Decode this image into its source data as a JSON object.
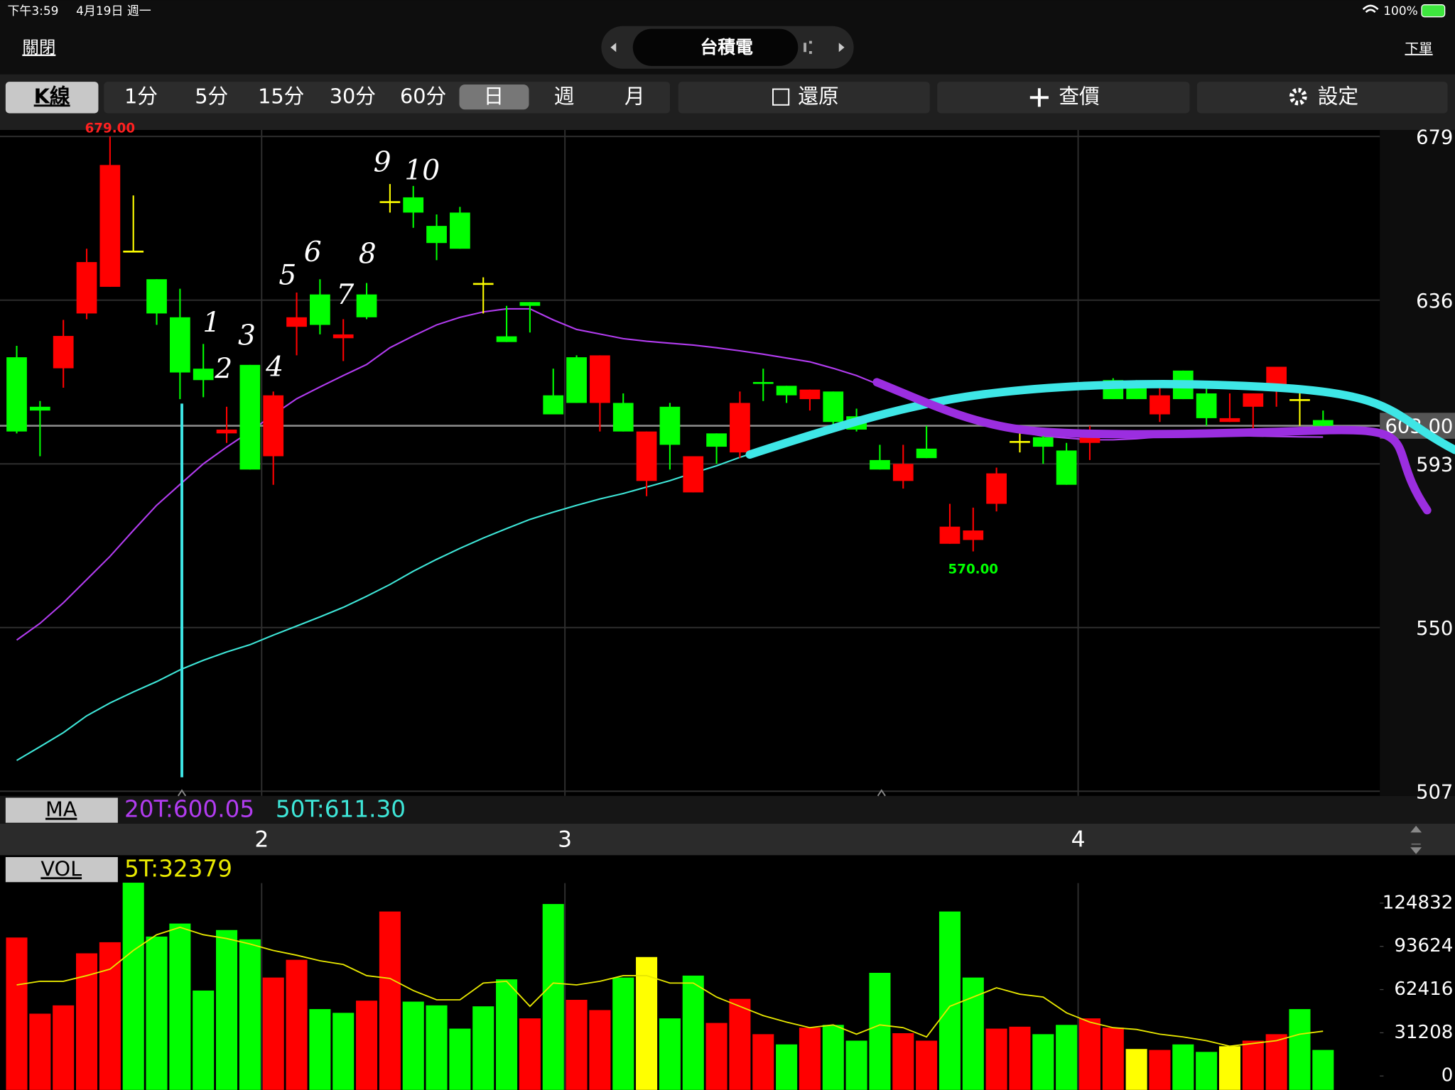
{
  "status_bar": {
    "time": "下午3:59",
    "date": "4月19日 週一",
    "battery": "100%"
  },
  "nav": {
    "close": "關閉",
    "title": "台積電",
    "order": "下單"
  },
  "toolbar": {
    "kline": "K線",
    "periods": [
      "1分",
      "5分",
      "15分",
      "30分",
      "60分",
      "日",
      "週",
      "月"
    ],
    "restore": "還原",
    "quote": "查價",
    "settings": "設定"
  },
  "panels": {
    "ma": "MA",
    "vol": "VOL"
  },
  "chart_data": [
    {
      "type": "candlestick",
      "categories": [
        null,
        null,
        null,
        null,
        null,
        null,
        null,
        null,
        null,
        null,
        null,
        "2",
        null,
        null,
        null,
        null,
        null,
        null,
        null,
        null,
        null,
        null,
        null,
        null,
        "3",
        null,
        null,
        null,
        null,
        null,
        null,
        null,
        null,
        null,
        null,
        null,
        null,
        null,
        null,
        null,
        null,
        null,
        null,
        null,
        null,
        null,
        "4",
        null,
        null,
        null,
        null,
        null,
        null,
        null,
        null,
        null,
        null
      ],
      "open": [
        621,
        608,
        618.1,
        632.5,
        639.5,
        649,
        641.5,
        631.5,
        618,
        601,
        619,
        595,
        629,
        637.5,
        626,
        637.5,
        662,
        663,
        655.5,
        659,
        640.5,
        626.5,
        635.5,
        611,
        621,
        609,
        609,
        588.5,
        608,
        585.5,
        601,
        596,
        614.5,
        613.5,
        610,
        612,
        605.5,
        594,
        588.5,
        597,
        572,
        573,
        582.5,
        599,
        600,
        596.5,
        598.5,
        615,
        614.5,
        606,
        617.5,
        611.5,
        604,
        608,
        613.5,
        610,
        604.5
      ],
      "high": [
        624,
        609.5,
        630.8,
        649.5,
        679,
        663.5,
        641.5,
        639,
        624.5,
        608,
        619,
        612,
        638,
        641.5,
        631,
        640.5,
        666.5,
        666,
        658.5,
        660.5,
        642,
        634.5,
        635.5,
        618,
        621.5,
        621.5,
        611.5,
        601.5,
        609,
        595,
        601,
        612,
        618,
        613.5,
        612.5,
        612,
        607.5,
        598,
        598,
        603,
        582.5,
        581.5,
        592,
        602.5,
        602.5,
        598.5,
        603,
        615.5,
        615,
        613,
        617.5,
        614.5,
        611.5,
        611.5,
        618.5,
        611.5,
        607
      ],
      "low": [
        601,
        595,
        613,
        631,
        639.5,
        649,
        629.5,
        610,
        610.5,
        598.5,
        591.5,
        587.5,
        621.5,
        627,
        620,
        631,
        659,
        655,
        646.5,
        649.5,
        632.5,
        625,
        627.5,
        606,
        609,
        601.5,
        601.5,
        584.5,
        591.5,
        585.5,
        593,
        594.5,
        609.5,
        609,
        607,
        603,
        601.5,
        591.5,
        586.5,
        594.5,
        572,
        570,
        580.5,
        596,
        593,
        587.5,
        594,
        610,
        610,
        604,
        610,
        603,
        604,
        602,
        608,
        603,
        602.5
      ],
      "close": [
        601.5,
        607,
        626.6,
        646,
        671.5,
        649,
        632.5,
        617,
        615,
        602,
        591.5,
        611,
        631.5,
        629.5,
        627,
        631.5,
        662,
        659,
        651,
        649.5,
        640.5,
        625,
        634.5,
        606,
        609,
        621.5,
        601.5,
        601.5,
        598,
        595,
        597.5,
        609,
        614,
        611,
        612.5,
        604,
        602,
        591.5,
        593,
        594.5,
        576.5,
        575.5,
        590.5,
        599,
        597.5,
        587.5,
        601.5,
        610,
        610,
        611,
        610,
        605,
        605,
        611.5,
        618.5,
        610,
        603
      ],
      "colors": {
        "up": "#ff0000",
        "down": "#00ff00",
        "flat": "#ffff00"
      },
      "ylim": [
        507,
        679
      ],
      "yticks": [
        679,
        636,
        593,
        550,
        507
      ],
      "grid": true,
      "high_label": "679.00",
      "low_label": "570.00",
      "last_price": 603,
      "last_price_label": "603.00",
      "annotations": [
        "1",
        "2",
        "3",
        "4",
        "5",
        "6",
        "7",
        "8",
        "9",
        "10"
      ],
      "series": [
        {
          "name": "20T:600.05",
          "color": "#b23cf0",
          "values": [
            546.7,
            551.1,
            556.5,
            562.6,
            568.7,
            575.5,
            582.1,
            587.6,
            593,
            597.4,
            601.5,
            605.9,
            610.1,
            613.2,
            616.2,
            619.1,
            623.5,
            626.6,
            629.5,
            631.5,
            632.9,
            633.7,
            633.7,
            630.8,
            628.3,
            627.1,
            625.9,
            625.2,
            624.7,
            624.2,
            623.5,
            622.7,
            621.8,
            620.8,
            619.8,
            618.1,
            616.2,
            613.7,
            611.3,
            608.8,
            606.9,
            604.7,
            602.8,
            601.3,
            600.3,
            599.8,
            599.3,
            599.3,
            599.6,
            600.1,
            600.3,
            600.6,
            600.5,
            600.3,
            600.2,
            600.1,
            600.05
          ]
        },
        {
          "name": "50T:611.30",
          "color": "#3ee6d8",
          "values": [
            515.1,
            518.7,
            522.4,
            526.8,
            530.2,
            533.1,
            535.8,
            538.9,
            541.4,
            543.6,
            545.5,
            548,
            550.4,
            552.8,
            555.3,
            558.2,
            561.3,
            564.8,
            567.9,
            570.8,
            573.5,
            576,
            578.4,
            580.3,
            582.1,
            583.8,
            585.2,
            586.9,
            588.6,
            590.6,
            592.5,
            594.7,
            596.7,
            598.6,
            600.3,
            602.3,
            604,
            605.9,
            607.6,
            609.1,
            610.5,
            611.3,
            612,
            612.3,
            612.5,
            612.7,
            613,
            613,
            613,
            613.2,
            613.5,
            613.7,
            613.7,
            613.5,
            613,
            612.5,
            611.3
          ]
        }
      ]
    },
    {
      "type": "bar",
      "values": [
        100000,
        45000,
        51000,
        88600,
        96600,
        139600,
        100700,
        110100,
        61700,
        105400,
        98700,
        71100,
        83900,
        48300,
        45600,
        54400,
        118800,
        53700,
        51000,
        34200,
        50300,
        69800,
        41600,
        124200,
        55000,
        47600,
        71100,
        85900,
        41600,
        72500,
        38300,
        55700,
        30200,
        22800,
        34900,
        36900,
        25500,
        74500,
        30900,
        25500,
        118800,
        71100,
        34200,
        35600,
        30200,
        36900,
        41600,
        34900,
        19500,
        18800,
        22800,
        17400,
        21500,
        25500,
        30200,
        48300,
        18800
      ],
      "colors": [
        "#ff0000",
        "#ff0000",
        "#ff0000",
        "#ff0000",
        "#ff0000",
        "#00ff00",
        "#00ff00",
        "#00ff00",
        "#00ff00",
        "#00ff00",
        "#00ff00",
        "#ff0000",
        "#ff0000",
        "#00ff00",
        "#00ff00",
        "#ff0000",
        "#ff0000",
        "#00ff00",
        "#00ff00",
        "#00ff00",
        "#00ff00",
        "#00ff00",
        "#ff0000",
        "#00ff00",
        "#ff0000",
        "#ff0000",
        "#00ff00",
        "#ffff00",
        "#00ff00",
        "#00ff00",
        "#ff0000",
        "#ff0000",
        "#ff0000",
        "#00ff00",
        "#ff0000",
        "#00ff00",
        "#00ff00",
        "#00ff00",
        "#ff0000",
        "#ff0000",
        "#00ff00",
        "#00ff00",
        "#ff0000",
        "#ff0000",
        "#00ff00",
        "#00ff00",
        "#ff0000",
        "#ff0000",
        "#ffff00",
        "#ff0000",
        "#00ff00",
        "#00ff00",
        "#ffff00",
        "#ff0000",
        "#ff0000",
        "#00ff00",
        "#00ff00"
      ],
      "ylim": [
        0,
        140000
      ],
      "yticks": [
        124832,
        93624,
        62416,
        31208,
        0
      ],
      "series": [
        {
          "name": "5T:32379",
          "color": "#e8e800",
          "values": [
            65800,
            68400,
            68400,
            72500,
            77200,
            90600,
            102000,
            107400,
            102000,
            99300,
            95300,
            90600,
            87200,
            83200,
            80500,
            72500,
            70500,
            61700,
            55000,
            55000,
            67100,
            68400,
            50300,
            67100,
            65800,
            68400,
            72500,
            72500,
            67100,
            67100,
            57000,
            50300,
            43600,
            38900,
            34900,
            36900,
            30200,
            36900,
            34900,
            28200,
            50300,
            57000,
            63700,
            59100,
            57000,
            45600,
            38900,
            34900,
            33600,
            30200,
            28200,
            25500,
            21500,
            23500,
            25500,
            30200,
            32379
          ]
        }
      ]
    }
  ]
}
